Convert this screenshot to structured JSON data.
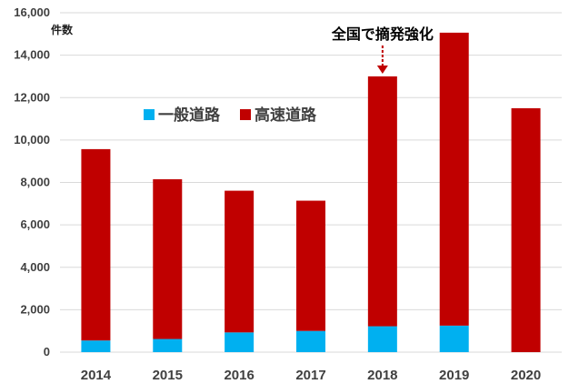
{
  "chart_data": {
    "type": "bar",
    "stacked": true,
    "categories": [
      "2014",
      "2015",
      "2016",
      "2017",
      "2018",
      "2019",
      "2020"
    ],
    "series": [
      {
        "name": "一般道路",
        "values": [
          550,
          620,
          930,
          1000,
          1220,
          1250,
          0
        ],
        "color": "#00b0f0"
      },
      {
        "name": "高速道路",
        "values": [
          9020,
          7530,
          6680,
          6140,
          11780,
          13810,
          11500
        ],
        "color": "#c00000"
      }
    ],
    "ylim": [
      0,
      16000
    ],
    "ytick_step": 2000,
    "ytick_labels": [
      "0",
      "2,000",
      "4,000",
      "6,000",
      "8,000",
      "10,000",
      "12,000",
      "14,000",
      "16,000"
    ],
    "ylabel": "件数",
    "xlabel": "",
    "title": "",
    "grid": true,
    "legend_position": "top-left inside plot",
    "annotation": {
      "text": "全国で摘発強化",
      "category": "2018",
      "style": "dashed arrow pointing down"
    }
  }
}
